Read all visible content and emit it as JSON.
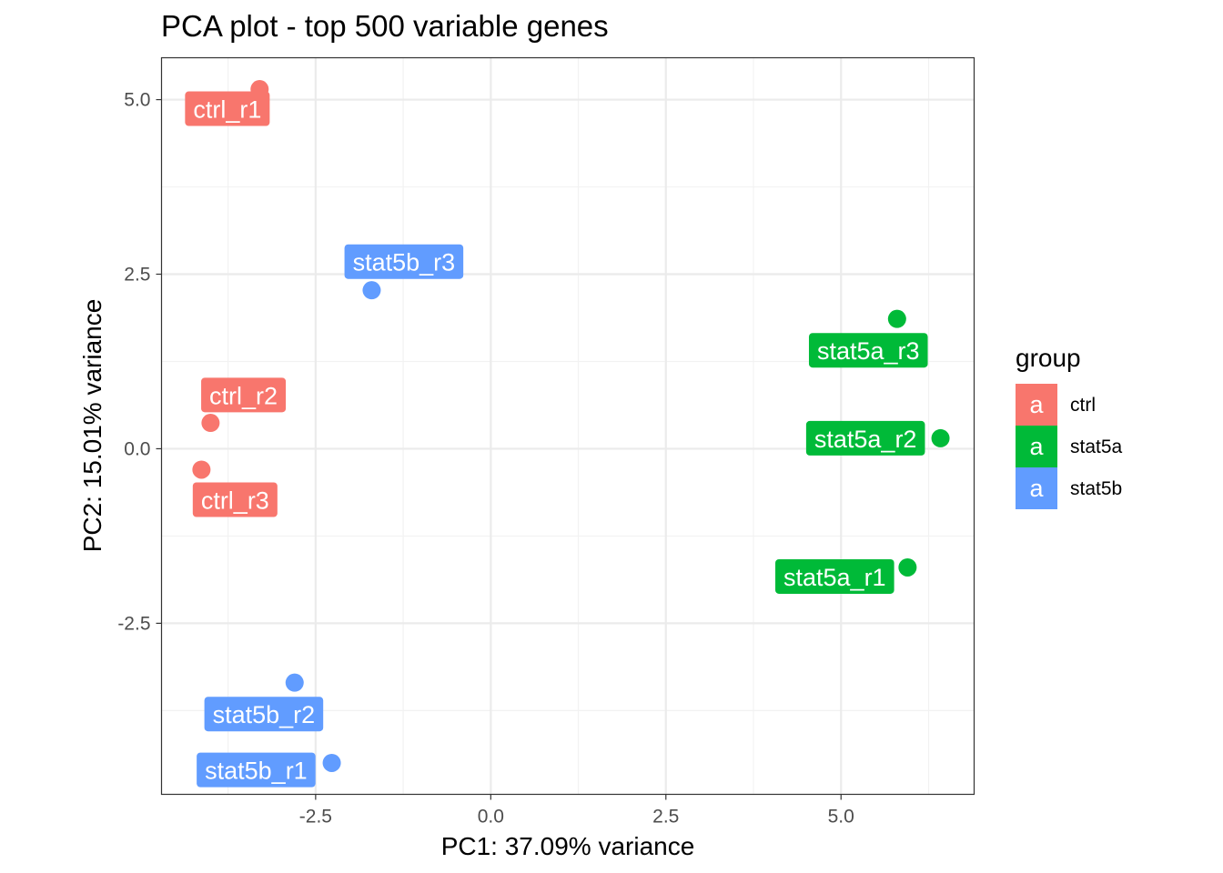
{
  "chart_data": {
    "type": "scatter",
    "title": "PCA plot - top 500 variable genes",
    "xlabel": "PC1: 37.09% variance",
    "ylabel": "PC2: 15.01% variance",
    "xlim": [
      -4.7,
      6.9
    ],
    "ylim": [
      -4.95,
      5.6
    ],
    "x_major_ticks": [
      -2.5,
      0.0,
      2.5,
      5.0
    ],
    "x_tick_labels": [
      "-2.5",
      "0.0",
      "2.5",
      "5.0"
    ],
    "x_minor_ticks": [
      -3.75,
      -1.25,
      1.25,
      3.75,
      6.25
    ],
    "y_major_ticks": [
      -2.5,
      0.0,
      2.5,
      5.0
    ],
    "y_tick_labels": [
      "-2.5",
      "0.0",
      "2.5",
      "5.0"
    ],
    "y_minor_ticks": [
      -3.75,
      -1.25,
      1.25,
      3.75
    ],
    "grid": true,
    "legend": {
      "title": "group",
      "position": "right",
      "key_glyph": "a",
      "entries": [
        "ctrl",
        "stat5a",
        "stat5b"
      ]
    },
    "colors": {
      "ctrl": "#F8766D",
      "stat5a": "#00BA38",
      "stat5b": "#619CFF"
    },
    "points": [
      {
        "label": "ctrl_r1",
        "group": "ctrl",
        "x": -3.3,
        "y": 5.15,
        "label_x": -3.76,
        "label_y": 4.87
      },
      {
        "label": "ctrl_r2",
        "group": "ctrl",
        "x": -4.0,
        "y": 0.37,
        "label_x": -3.53,
        "label_y": 0.77
      },
      {
        "label": "ctrl_r3",
        "group": "ctrl",
        "x": -4.13,
        "y": -0.3,
        "label_x": -3.65,
        "label_y": -0.73
      },
      {
        "label": "stat5a_r1",
        "group": "stat5a",
        "x": 5.95,
        "y": -1.7,
        "label_x": 4.91,
        "label_y": -1.83
      },
      {
        "label": "stat5a_r2",
        "group": "stat5a",
        "x": 6.42,
        "y": 0.15,
        "label_x": 5.35,
        "label_y": 0.15
      },
      {
        "label": "stat5a_r3",
        "group": "stat5a",
        "x": 5.8,
        "y": 1.86,
        "label_x": 5.39,
        "label_y": 1.41
      },
      {
        "label": "stat5b_r1",
        "group": "stat5b",
        "x": -2.27,
        "y": -4.5,
        "label_x": -3.35,
        "label_y": -4.6
      },
      {
        "label": "stat5b_r2",
        "group": "stat5b",
        "x": -2.8,
        "y": -3.35,
        "label_x": -3.24,
        "label_y": -3.8
      },
      {
        "label": "stat5b_r3",
        "group": "stat5b",
        "x": -1.7,
        "y": 2.27,
        "label_x": -1.24,
        "label_y": 2.68
      }
    ]
  }
}
